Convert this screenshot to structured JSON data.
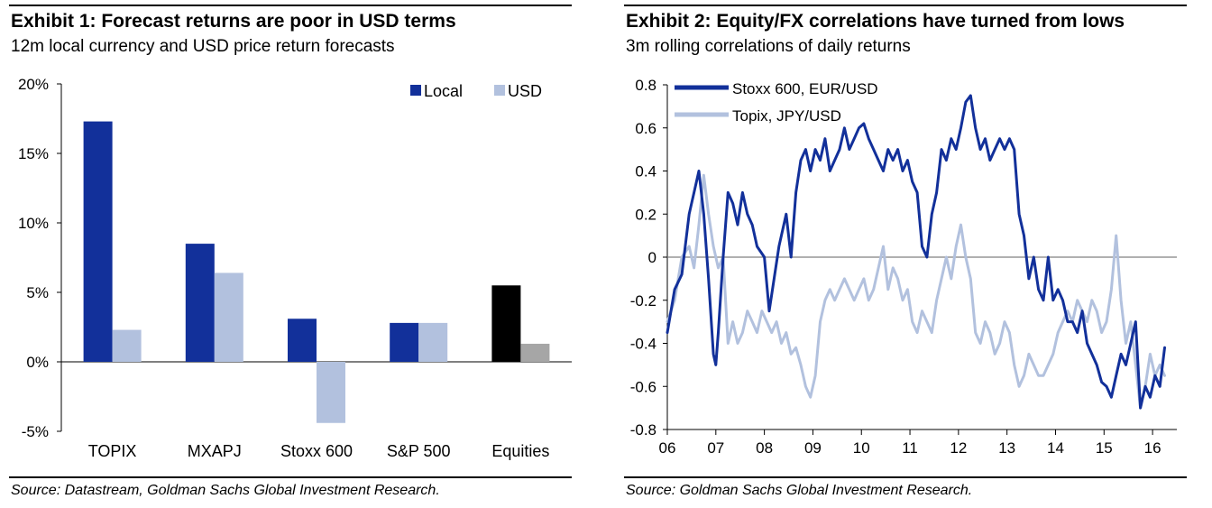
{
  "exhibits": [
    {
      "title": "Exhibit 1: Forecast returns are poor in USD terms",
      "subtitle": "12m local currency and USD price return forecasts",
      "source": "Source: Datastream, Goldman Sachs Global Investment Research."
    },
    {
      "title": "Exhibit 2: Equity/FX correlations have turned from lows",
      "subtitle": "3m rolling correlations of daily returns",
      "source": "Source: Goldman Sachs Global Investment Research."
    }
  ],
  "chart_data": [
    {
      "type": "bar",
      "title": "Exhibit 1: Forecast returns are poor in USD terms",
      "subtitle": "12m local currency and USD price return forecasts",
      "categories": [
        "TOPIX",
        "MXAPJ",
        "Stoxx 600",
        "S&P 500",
        "Equities"
      ],
      "series": [
        {
          "name": "Local",
          "values": [
            17.3,
            8.5,
            3.1,
            2.8,
            5.5
          ]
        },
        {
          "name": "USD",
          "values": [
            2.3,
            6.4,
            -4.4,
            2.8,
            1.3
          ]
        }
      ],
      "ylim": [
        -5,
        20
      ],
      "yticks": [
        -5,
        0,
        5,
        10,
        15,
        20
      ],
      "ytick_labels": [
        "-5%",
        "0%",
        "5%",
        "10%",
        "15%",
        "20%"
      ],
      "legend": [
        "Local",
        "USD"
      ],
      "legend_position": "top-right",
      "colors": {
        "local": "#12309a",
        "usd": "#b2c1de",
        "equities_local": "#000000",
        "equities_usd": "#a6a6a6"
      }
    },
    {
      "type": "line",
      "title": "Exhibit 2: Equity/FX correlations have turned from lows",
      "subtitle": "3m rolling correlations of daily returns",
      "xlim": [
        2006,
        2016.5
      ],
      "ylim": [
        -0.8,
        0.8
      ],
      "xticks": [
        2006,
        2007,
        2008,
        2009,
        2010,
        2011,
        2012,
        2013,
        2014,
        2015,
        2016
      ],
      "xtick_labels": [
        "06",
        "07",
        "08",
        "09",
        "10",
        "11",
        "12",
        "13",
        "14",
        "15",
        "16"
      ],
      "yticks": [
        -0.8,
        -0.6,
        -0.4,
        -0.2,
        0,
        0.2,
        0.4,
        0.6,
        0.8
      ],
      "ytick_labels": [
        "-0.8",
        "-0.6",
        "-0.4",
        "-0.2",
        "0",
        "0.2",
        "0.4",
        "0.6",
        "0.8"
      ],
      "legend_position": "top-left",
      "series": [
        {
          "name": "Stoxx 600, EUR/USD",
          "color": "#12309a",
          "x": [
            2006.0,
            2006.15,
            2006.3,
            2006.45,
            2006.55,
            2006.65,
            2006.75,
            2006.85,
            2006.95,
            2007.0,
            2007.05,
            2007.15,
            2007.2,
            2007.25,
            2007.35,
            2007.45,
            2007.55,
            2007.65,
            2007.75,
            2007.85,
            2008.0,
            2008.1,
            2008.2,
            2008.3,
            2008.45,
            2008.55,
            2008.65,
            2008.75,
            2008.85,
            2008.95,
            2009.05,
            2009.15,
            2009.25,
            2009.35,
            2009.45,
            2009.55,
            2009.65,
            2009.75,
            2009.85,
            2009.95,
            2010.05,
            2010.15,
            2010.25,
            2010.35,
            2010.45,
            2010.55,
            2010.65,
            2010.75,
            2010.85,
            2010.95,
            2011.05,
            2011.15,
            2011.25,
            2011.35,
            2011.45,
            2011.55,
            2011.65,
            2011.75,
            2011.85,
            2011.95,
            2012.05,
            2012.15,
            2012.25,
            2012.35,
            2012.45,
            2012.55,
            2012.65,
            2012.75,
            2012.85,
            2012.95,
            2013.05,
            2013.15,
            2013.25,
            2013.35,
            2013.45,
            2013.55,
            2013.65,
            2013.75,
            2013.85,
            2013.95,
            2014.05,
            2014.15,
            2014.25,
            2014.35,
            2014.45,
            2014.55,
            2014.65,
            2014.75,
            2014.85,
            2014.95,
            2015.05,
            2015.15,
            2015.25,
            2015.35,
            2015.45,
            2015.55,
            2015.65,
            2015.75,
            2015.85,
            2015.95,
            2016.05,
            2016.15,
            2016.25
          ],
          "y": [
            -0.35,
            -0.15,
            -0.08,
            0.2,
            0.3,
            0.4,
            0.2,
            -0.1,
            -0.45,
            -0.5,
            -0.35,
            0.0,
            0.15,
            0.3,
            0.25,
            0.15,
            0.3,
            0.2,
            0.15,
            0.05,
            0.0,
            -0.25,
            -0.1,
            0.05,
            0.2,
            0.0,
            0.3,
            0.45,
            0.5,
            0.4,
            0.5,
            0.45,
            0.55,
            0.4,
            0.45,
            0.5,
            0.6,
            0.5,
            0.55,
            0.6,
            0.62,
            0.55,
            0.5,
            0.45,
            0.4,
            0.5,
            0.45,
            0.5,
            0.4,
            0.45,
            0.35,
            0.3,
            0.05,
            0.0,
            0.2,
            0.3,
            0.5,
            0.45,
            0.55,
            0.5,
            0.6,
            0.72,
            0.75,
            0.6,
            0.5,
            0.55,
            0.45,
            0.5,
            0.55,
            0.5,
            0.55,
            0.5,
            0.2,
            0.1,
            -0.1,
            0.0,
            -0.15,
            -0.2,
            0.0,
            -0.2,
            -0.15,
            -0.2,
            -0.3,
            -0.3,
            -0.35,
            -0.25,
            -0.4,
            -0.45,
            -0.5,
            -0.58,
            -0.6,
            -0.65,
            -0.55,
            -0.45,
            -0.5,
            -0.4,
            -0.3,
            -0.7,
            -0.6,
            -0.65,
            -0.55,
            -0.6,
            -0.42
          ]
        },
        {
          "name": "Topix, JPY/USD",
          "color": "#b2c1de",
          "x": [
            2006.0,
            2006.15,
            2006.3,
            2006.45,
            2006.55,
            2006.65,
            2006.75,
            2006.85,
            2006.95,
            2007.05,
            2007.15,
            2007.25,
            2007.35,
            2007.45,
            2007.55,
            2007.65,
            2007.75,
            2007.85,
            2007.95,
            2008.05,
            2008.15,
            2008.25,
            2008.35,
            2008.45,
            2008.55,
            2008.65,
            2008.75,
            2008.85,
            2008.95,
            2009.05,
            2009.15,
            2009.25,
            2009.35,
            2009.45,
            2009.55,
            2009.65,
            2009.75,
            2009.85,
            2009.95,
            2010.05,
            2010.15,
            2010.25,
            2010.35,
            2010.45,
            2010.55,
            2010.65,
            2010.75,
            2010.85,
            2010.95,
            2011.05,
            2011.15,
            2011.25,
            2011.35,
            2011.45,
            2011.55,
            2011.65,
            2011.75,
            2011.85,
            2011.95,
            2012.05,
            2012.15,
            2012.25,
            2012.35,
            2012.45,
            2012.55,
            2012.65,
            2012.75,
            2012.85,
            2012.95,
            2013.05,
            2013.15,
            2013.25,
            2013.35,
            2013.45,
            2013.55,
            2013.65,
            2013.75,
            2013.85,
            2013.95,
            2014.05,
            2014.15,
            2014.25,
            2014.35,
            2014.45,
            2014.55,
            2014.65,
            2014.75,
            2014.85,
            2014.95,
            2015.05,
            2015.15,
            2015.25,
            2015.35,
            2015.45,
            2015.55,
            2015.65,
            2015.75,
            2015.85,
            2015.95,
            2016.05,
            2016.15,
            2016.25
          ],
          "y": [
            -0.3,
            -0.2,
            0.0,
            0.05,
            -0.05,
            0.15,
            0.38,
            0.2,
            0.05,
            -0.05,
            0.0,
            -0.4,
            -0.3,
            -0.4,
            -0.35,
            -0.25,
            -0.3,
            -0.35,
            -0.25,
            -0.3,
            -0.35,
            -0.3,
            -0.4,
            -0.35,
            -0.45,
            -0.42,
            -0.5,
            -0.6,
            -0.65,
            -0.55,
            -0.3,
            -0.2,
            -0.15,
            -0.2,
            -0.15,
            -0.1,
            -0.15,
            -0.2,
            -0.15,
            -0.1,
            -0.2,
            -0.15,
            -0.05,
            0.05,
            -0.15,
            -0.05,
            -0.1,
            -0.2,
            -0.15,
            -0.3,
            -0.35,
            -0.25,
            -0.3,
            -0.35,
            -0.2,
            -0.1,
            0.0,
            -0.1,
            0.05,
            0.15,
            0.0,
            -0.1,
            -0.35,
            -0.4,
            -0.3,
            -0.35,
            -0.45,
            -0.4,
            -0.3,
            -0.35,
            -0.5,
            -0.6,
            -0.55,
            -0.45,
            -0.5,
            -0.55,
            -0.55,
            -0.5,
            -0.45,
            -0.35,
            -0.3,
            -0.25,
            -0.3,
            -0.2,
            -0.25,
            -0.3,
            -0.2,
            -0.25,
            -0.35,
            -0.3,
            -0.15,
            0.1,
            -0.2,
            -0.4,
            -0.3,
            -0.5,
            -0.7,
            -0.6,
            -0.45,
            -0.55,
            -0.5,
            -0.55
          ]
        }
      ]
    }
  ]
}
